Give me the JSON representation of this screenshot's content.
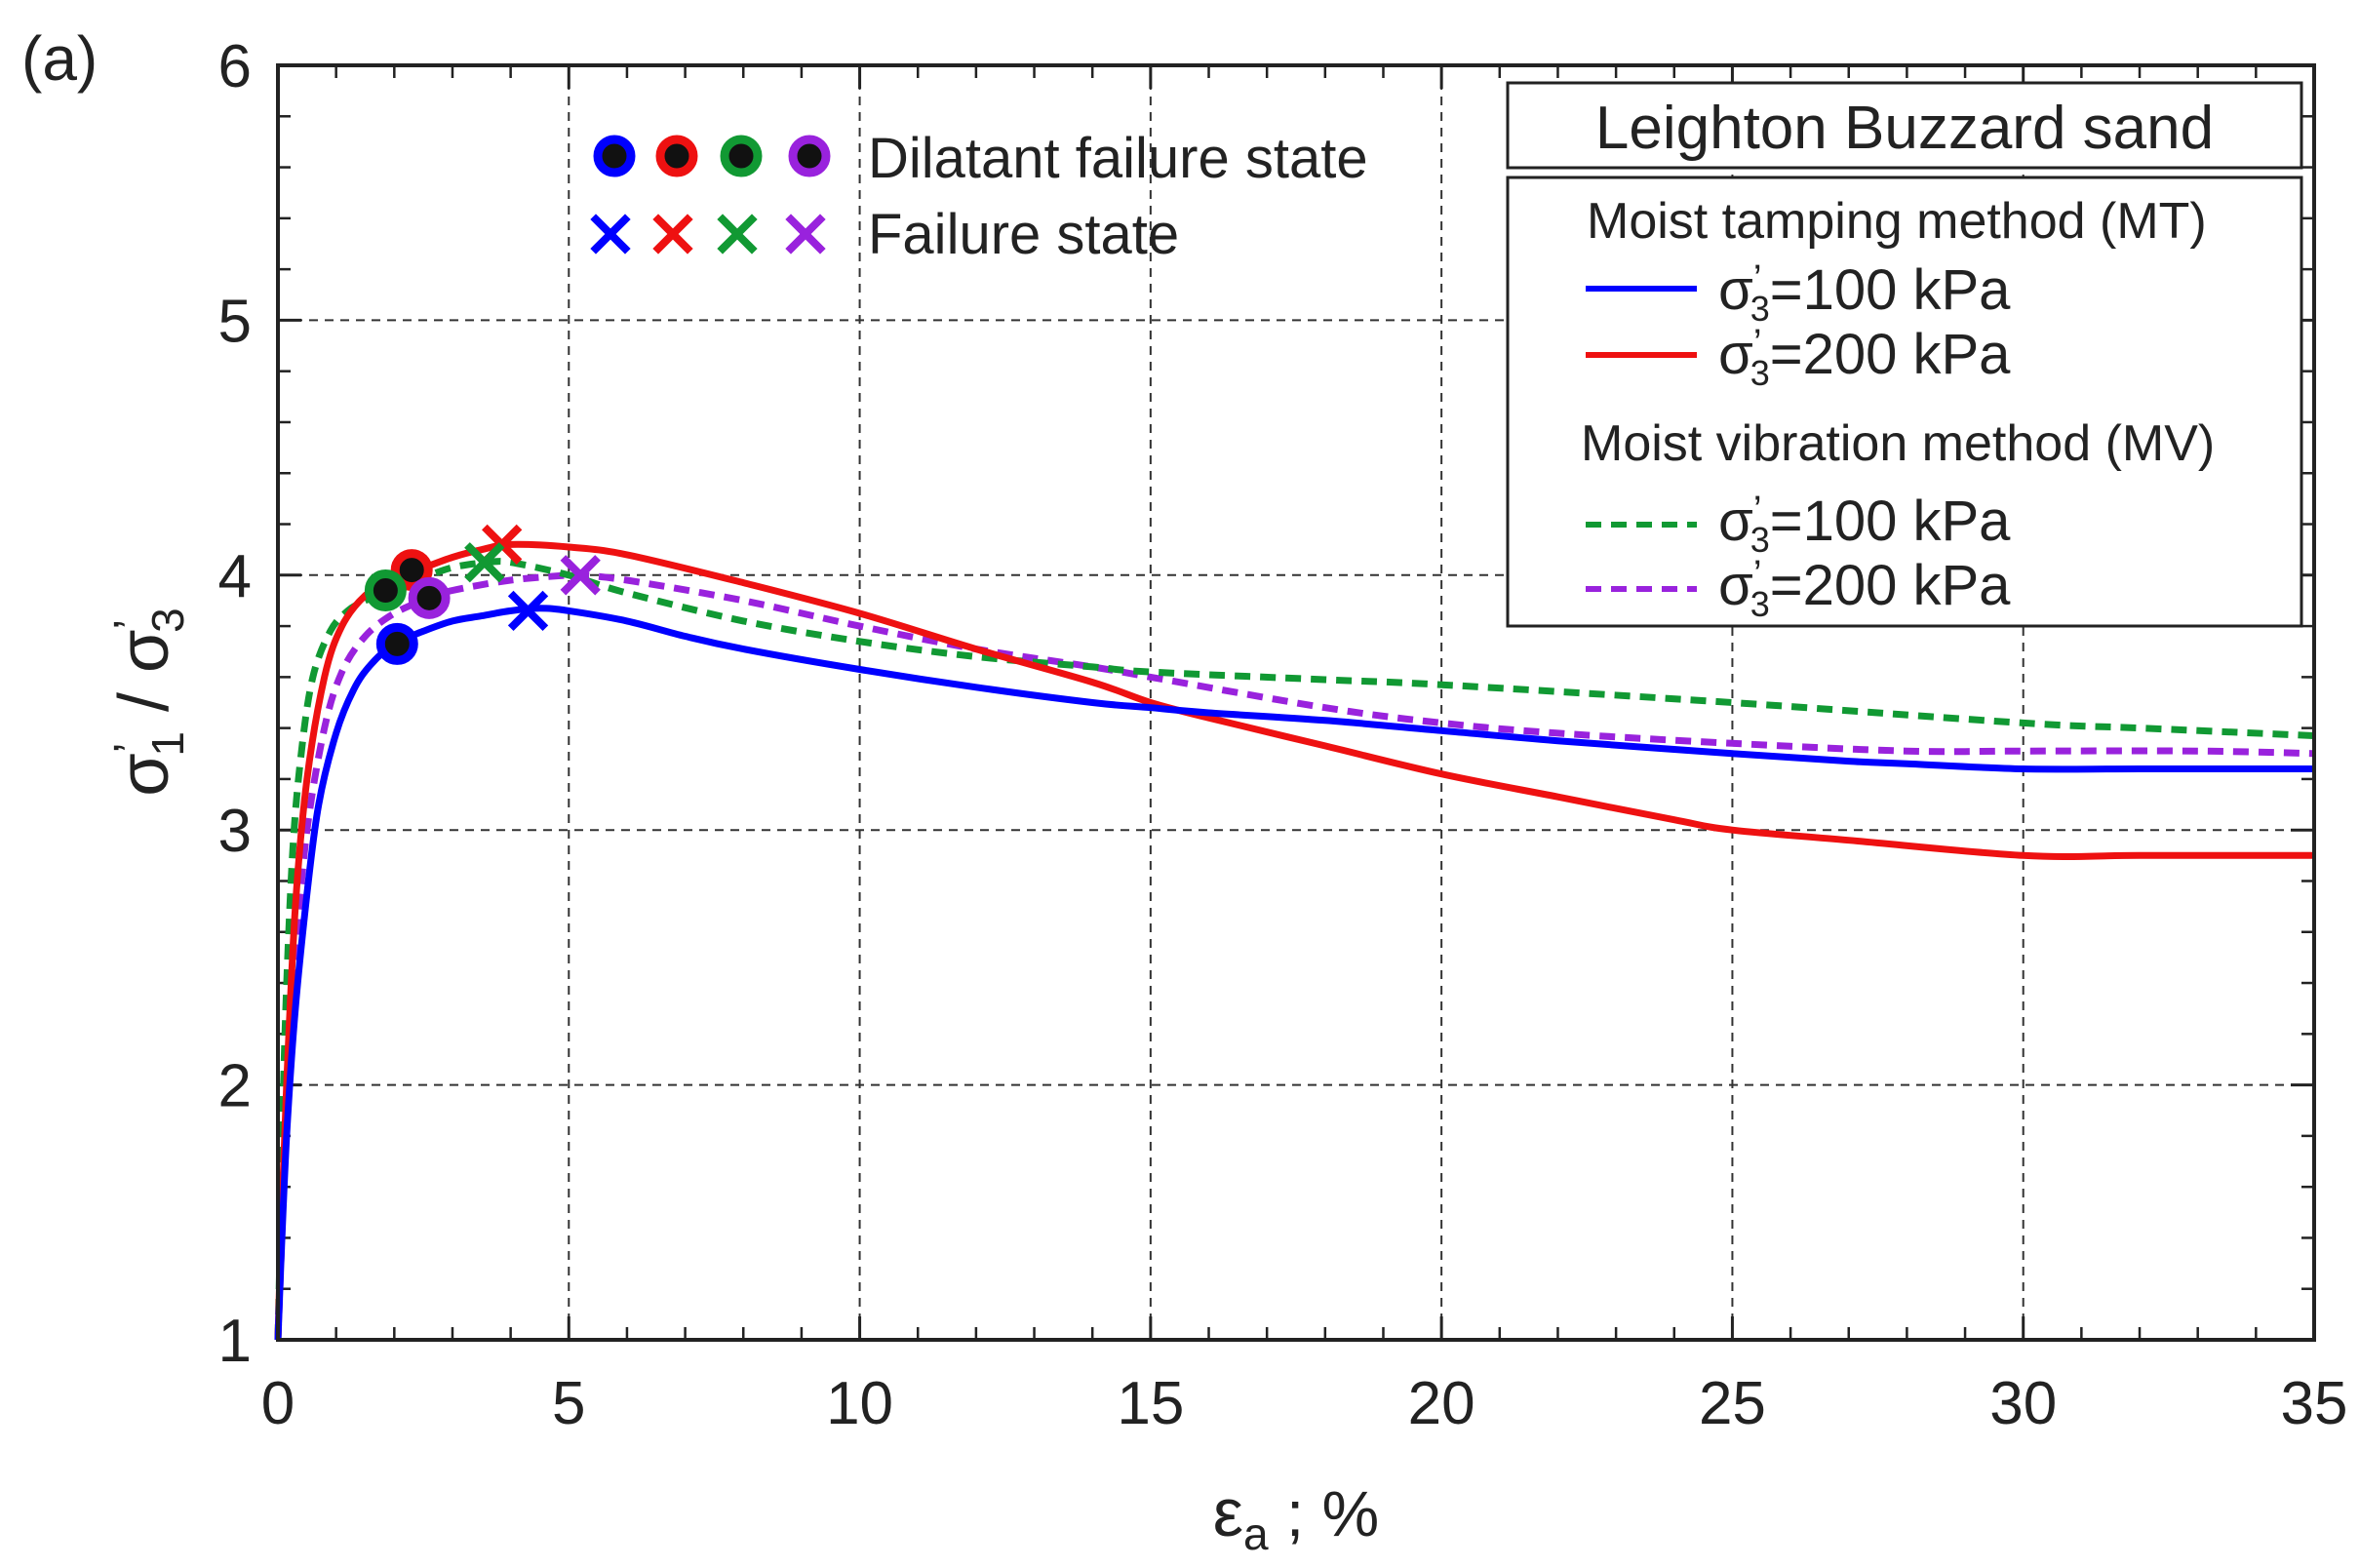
{
  "panel_label": "(a)",
  "chart_data": {
    "type": "line",
    "title": "",
    "xlabel": "εa ; %",
    "ylabel": "σ'1 / σ'3",
    "xlim": [
      0,
      35
    ],
    "ylim": [
      1,
      6
    ],
    "xticks": [
      0,
      5,
      10,
      15,
      20,
      25,
      30,
      35
    ],
    "yticks": [
      1,
      2,
      3,
      4,
      5,
      6
    ],
    "xtick_labels": [
      "0",
      "5",
      "10",
      "15",
      "20",
      "25",
      "30",
      "35"
    ],
    "ytick_labels": [
      "1",
      "2",
      "3",
      "4",
      "5",
      "6"
    ],
    "grid": true,
    "series": [
      {
        "name": "MT σ'3=100 kPa",
        "method": "MT",
        "color": "#0000ff",
        "dash": "solid",
        "x": [
          0,
          0.05,
          0.15,
          0.3,
          0.5,
          0.7,
          1.0,
          1.3,
          1.6,
          2.0,
          2.5,
          3.0,
          3.5,
          4.0,
          4.5,
          5.0,
          6.0,
          7.0,
          8.0,
          10.0,
          12.0,
          14.0,
          15.0,
          16.0,
          18.0,
          20.0,
          22.0,
          25.0,
          27.0,
          28.0,
          30.0,
          32.0,
          35.0
        ],
        "y": [
          1.0,
          1.3,
          1.8,
          2.3,
          2.75,
          3.1,
          3.38,
          3.55,
          3.65,
          3.73,
          3.78,
          3.82,
          3.84,
          3.86,
          3.87,
          3.86,
          3.82,
          3.76,
          3.71,
          3.63,
          3.56,
          3.5,
          3.48,
          3.46,
          3.43,
          3.39,
          3.35,
          3.3,
          3.27,
          3.26,
          3.24,
          3.24,
          3.24
        ],
        "dilatant_failure": [
          2.05,
          3.73
        ],
        "failure": [
          4.3,
          3.86
        ]
      },
      {
        "name": "MT σ'3=200 kPa",
        "method": "MT",
        "color": "#ee1111",
        "dash": "solid",
        "x": [
          0,
          0.05,
          0.15,
          0.3,
          0.5,
          0.8,
          1.1,
          1.5,
          2.0,
          2.4,
          3.0,
          3.5,
          4.0,
          5.0,
          6.0,
          8.0,
          10.0,
          12.0,
          14.0,
          15.0,
          16.0,
          18.0,
          20.0,
          22.0,
          24.0,
          25.0,
          27.0,
          30.0,
          32.0,
          35.0
        ],
        "y": [
          1.0,
          1.4,
          2.0,
          2.7,
          3.2,
          3.6,
          3.8,
          3.92,
          3.99,
          4.02,
          4.07,
          4.1,
          4.12,
          4.11,
          4.08,
          3.97,
          3.85,
          3.71,
          3.58,
          3.5,
          3.44,
          3.33,
          3.22,
          3.13,
          3.04,
          3.0,
          2.96,
          2.9,
          2.9,
          2.9
        ],
        "dilatant_failure": [
          2.3,
          4.02
        ],
        "failure": [
          3.85,
          4.12
        ]
      },
      {
        "name": "MV σ'3=100 kPa",
        "method": "MV",
        "color": "#119933",
        "dash": "dashed",
        "x": [
          0,
          0.05,
          0.12,
          0.25,
          0.4,
          0.6,
          0.9,
          1.2,
          1.5,
          1.9,
          2.5,
          3.0,
          3.6,
          4.0,
          5.0,
          6.0,
          8.0,
          10.0,
          12.0,
          14.0,
          15.0,
          18.0,
          20.0,
          25.0,
          30.0,
          32.0,
          35.0
        ],
        "y": [
          1.0,
          1.5,
          2.2,
          2.9,
          3.3,
          3.6,
          3.78,
          3.86,
          3.9,
          3.94,
          3.99,
          4.03,
          4.05,
          4.05,
          4.0,
          3.93,
          3.82,
          3.74,
          3.68,
          3.64,
          3.62,
          3.59,
          3.57,
          3.5,
          3.42,
          3.4,
          3.37
        ],
        "dilatant_failure": [
          1.85,
          3.94
        ],
        "failure": [
          3.55,
          4.05
        ]
      },
      {
        "name": "MV σ'3=200 kPa",
        "method": "MV",
        "color": "#9922dd",
        "dash": "dashed",
        "x": [
          0,
          0.05,
          0.15,
          0.3,
          0.5,
          0.8,
          1.1,
          1.5,
          2.0,
          2.6,
          3.0,
          4.0,
          5.0,
          5.2,
          6.0,
          8.0,
          10.0,
          12.0,
          14.0,
          15.0,
          18.0,
          20.0,
          22.0,
          25.0,
          28.0,
          30.0,
          33.0,
          35.0
        ],
        "y": [
          1.0,
          1.3,
          1.9,
          2.5,
          3.0,
          3.4,
          3.62,
          3.76,
          3.85,
          3.91,
          3.94,
          3.98,
          4.0,
          4.0,
          3.98,
          3.9,
          3.8,
          3.71,
          3.64,
          3.6,
          3.48,
          3.42,
          3.38,
          3.34,
          3.31,
          3.31,
          3.31,
          3.3
        ],
        "dilatant_failure": [
          2.6,
          3.91
        ],
        "failure": [
          5.2,
          4.0
        ]
      }
    ],
    "marker_legend": {
      "dilatant_label": "Dilatant failure state",
      "failure_label": "Failure state"
    },
    "legend": {
      "title": "Leighton Buzzard sand",
      "groups": [
        {
          "heading": "Moist tamping method (MT)",
          "entries": [
            {
              "label": "σ'3=100 kPa",
              "color": "#0000ff",
              "dash": "solid"
            },
            {
              "label": "σ'3=200 kPa",
              "color": "#ee1111",
              "dash": "solid"
            }
          ]
        },
        {
          "heading": "Moist vibration method (MV)",
          "entries": [
            {
              "label": "σ'3=100 kPa",
              "color": "#119933",
              "dash": "dashed"
            },
            {
              "label": "σ'3=200 kPa",
              "color": "#9922dd",
              "dash": "dashed"
            }
          ]
        }
      ],
      "placement": "top-right"
    }
  }
}
